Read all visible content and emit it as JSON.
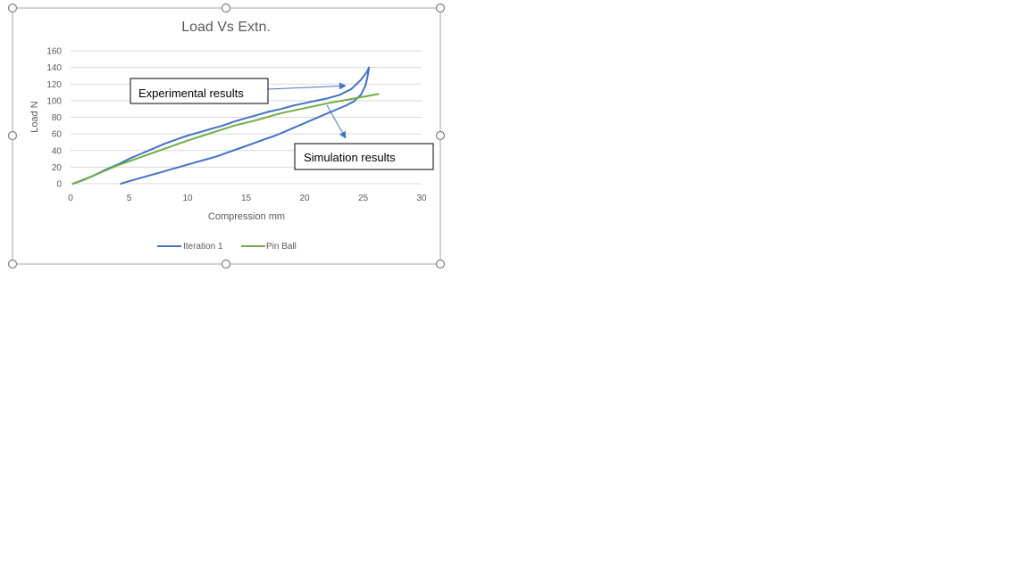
{
  "chart_data": {
    "type": "line",
    "title": "Load Vs Extn.",
    "xlabel": "Compression mm",
    "ylabel": "Load N",
    "xlim": [
      0,
      30
    ],
    "ylim": [
      0,
      160
    ],
    "xticks": [
      0,
      5,
      10,
      15,
      20,
      25,
      30
    ],
    "yticks": [
      0,
      20,
      40,
      60,
      80,
      100,
      120,
      140,
      160
    ],
    "grid": true,
    "legend": "bottom",
    "series": [
      {
        "name": "Iteration 1",
        "color": "#4472C4",
        "points": [
          [
            0.2,
            0
          ],
          [
            1,
            4
          ],
          [
            2,
            10
          ],
          [
            3,
            17
          ],
          [
            4,
            23
          ],
          [
            5,
            30
          ],
          [
            6,
            36
          ],
          [
            7,
            42
          ],
          [
            8,
            48
          ],
          [
            9,
            53
          ],
          [
            10,
            58
          ],
          [
            11,
            62
          ],
          [
            12,
            66
          ],
          [
            13,
            70
          ],
          [
            14,
            75
          ],
          [
            15,
            79
          ],
          [
            16,
            83
          ],
          [
            17,
            87
          ],
          [
            18,
            90
          ],
          [
            19,
            94
          ],
          [
            20,
            97
          ],
          [
            21,
            100
          ],
          [
            22,
            103
          ],
          [
            23,
            107
          ],
          [
            24,
            114
          ],
          [
            24.8,
            125
          ],
          [
            25.3,
            134
          ],
          [
            25.5,
            140
          ],
          [
            25.4,
            130
          ],
          [
            25.2,
            118
          ],
          [
            24.8,
            107
          ],
          [
            24.2,
            99
          ],
          [
            23.5,
            94
          ],
          [
            22.5,
            88
          ],
          [
            21.5,
            82
          ],
          [
            20.5,
            76
          ],
          [
            19.5,
            70
          ],
          [
            18.5,
            64
          ],
          [
            17.5,
            58
          ],
          [
            16.5,
            53
          ],
          [
            15.5,
            48
          ],
          [
            14.5,
            43
          ],
          [
            13.5,
            38
          ],
          [
            12.5,
            33
          ],
          [
            11.5,
            29
          ],
          [
            10.5,
            25
          ],
          [
            9.5,
            21
          ],
          [
            8.5,
            17
          ],
          [
            7.5,
            13
          ],
          [
            6.5,
            9
          ],
          [
            5.5,
            5
          ],
          [
            4.5,
            1
          ],
          [
            4.3,
            0
          ]
        ]
      },
      {
        "name": "Pin Ball",
        "color": "#70AD47",
        "points": [
          [
            0.2,
            0
          ],
          [
            2,
            10
          ],
          [
            4,
            22
          ],
          [
            6,
            32
          ],
          [
            8,
            42
          ],
          [
            10,
            52
          ],
          [
            12,
            61
          ],
          [
            14,
            70
          ],
          [
            16,
            77
          ],
          [
            18,
            85
          ],
          [
            20,
            91
          ],
          [
            22,
            97
          ],
          [
            24,
            102
          ],
          [
            26.3,
            108
          ]
        ]
      }
    ],
    "annotations": [
      {
        "label": "Experimental results",
        "target": [
          23.5,
          118
        ]
      },
      {
        "label": "Simulation results",
        "target": [
          23.5,
          55
        ]
      }
    ]
  }
}
